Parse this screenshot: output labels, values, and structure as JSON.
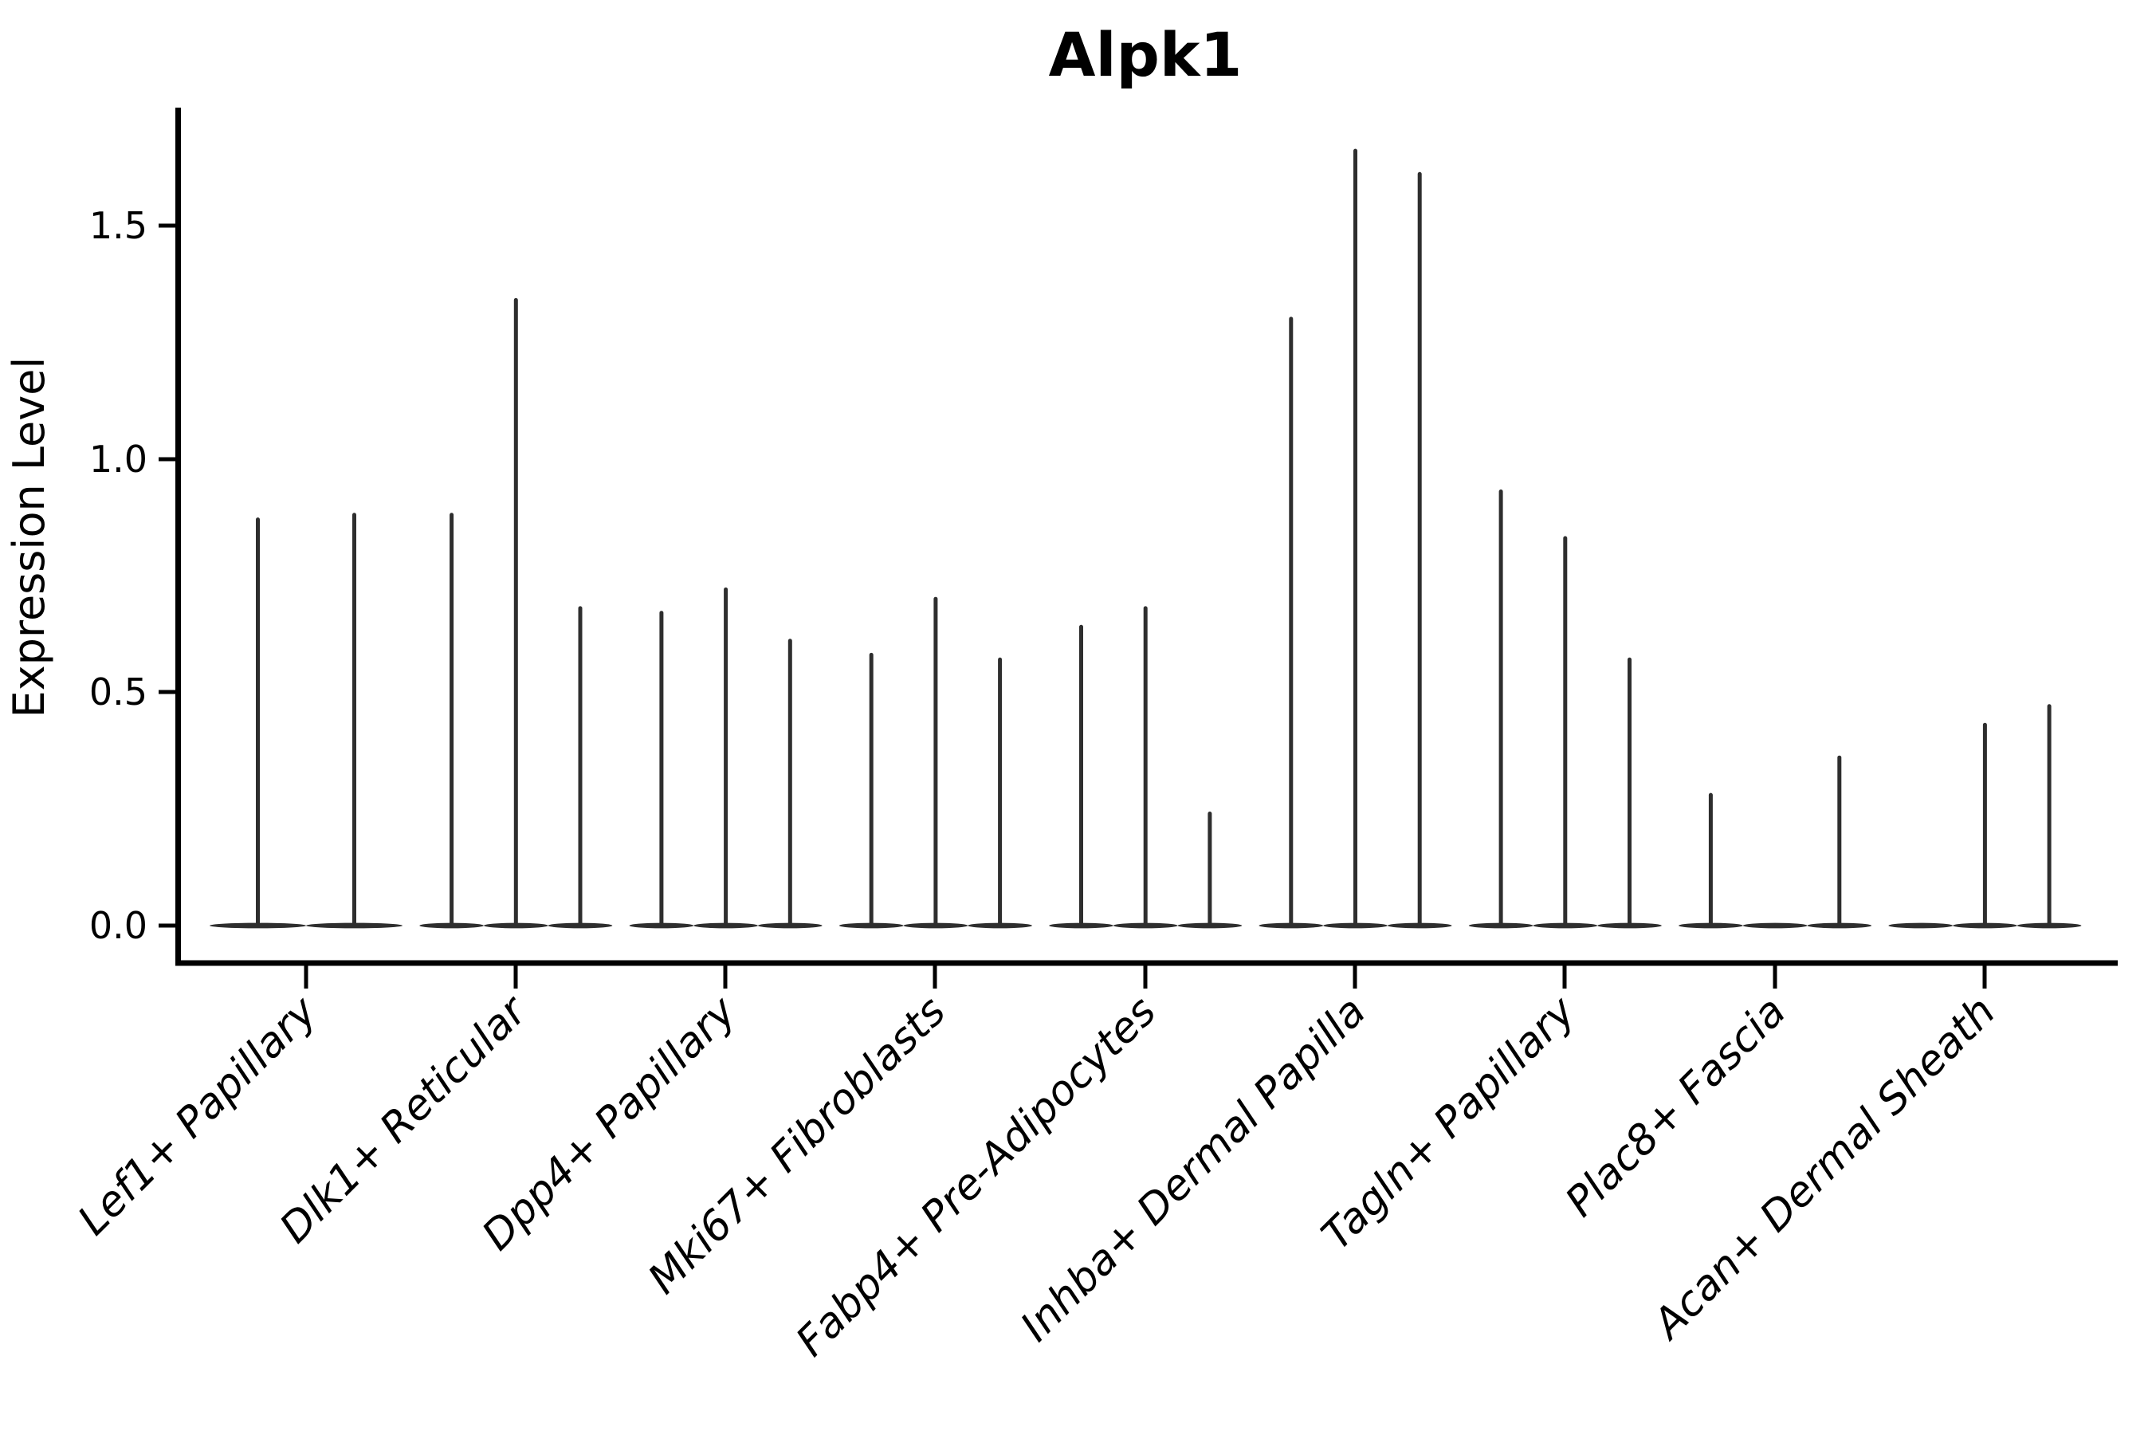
{
  "title": "Alpk1",
  "chart_data": {
    "type": "violin",
    "title": "Alpk1",
    "subtitle": "",
    "ylabel": "Expression Level",
    "xlabel": "",
    "yticks": [
      0.0,
      0.5,
      1.0,
      1.5
    ],
    "ytick_labels": [
      "0.0",
      "0.5",
      "1.0",
      "1.5"
    ],
    "ylim": [
      -0.08,
      1.75
    ],
    "grid": false,
    "legend_position": "none",
    "categories": [
      "Lef1+ Papillary",
      "Dlk1+ Reticular",
      "Dpp4+ Papillary",
      "Mki67+ Fibroblasts",
      "Fabp4+ Pre-Adipocytes",
      "Inhba+ Dermal Papilla",
      "Tagln+ Papillary",
      "Plac8+ Fascia",
      "Acan+ Dermal Sheath"
    ],
    "groups": [
      {
        "category": "Lef1+ Papillary",
        "violin_max_values": [
          0.87,
          0.88
        ]
      },
      {
        "category": "Dlk1+ Reticular",
        "violin_max_values": [
          0.88,
          1.34,
          0.68
        ]
      },
      {
        "category": "Dpp4+ Papillary",
        "violin_max_values": [
          0.67,
          0.72,
          0.61
        ]
      },
      {
        "category": "Mki67+ Fibroblasts",
        "violin_max_values": [
          0.58,
          0.7,
          0.57
        ]
      },
      {
        "category": "Fabp4+ Pre-Adipocytes",
        "violin_max_values": [
          0.64,
          0.68,
          0.24
        ]
      },
      {
        "category": "Inhba+ Dermal Papilla",
        "violin_max_values": [
          1.3,
          1.66,
          1.61
        ]
      },
      {
        "category": "Tagln+ Papillary",
        "violin_max_values": [
          0.93,
          0.83,
          0.57
        ]
      },
      {
        "category": "Plac8+ Fascia",
        "violin_max_values": [
          0.28,
          0.0,
          0.36
        ]
      },
      {
        "category": "Acan+ Dermal Sheath",
        "violin_max_values": [
          0.0,
          0.43,
          0.47
        ]
      }
    ],
    "violin_description": "Each violin is a flat density mass at expression 0 with a thin spike up to the max value; max value 0 means flat violin with no spike.",
    "colors": {
      "violin": "#2e2e2e",
      "axis": "#000000",
      "text": "#000000",
      "background": "#ffffff"
    }
  }
}
